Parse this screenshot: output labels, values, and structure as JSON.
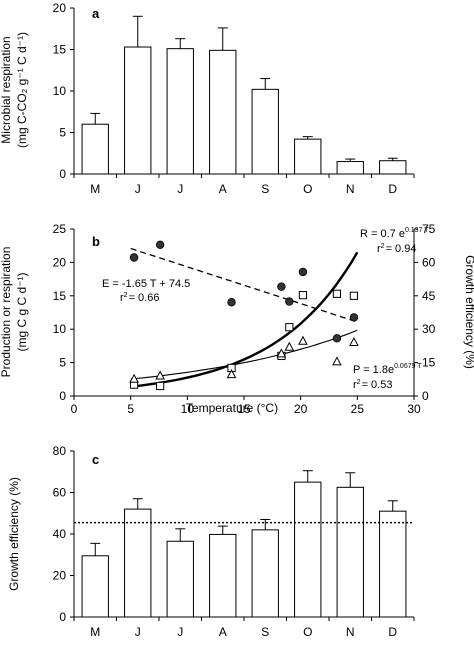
{
  "chart_data": [
    {
      "panel": "a",
      "type": "bar",
      "categories": [
        "M",
        "J",
        "J",
        "A",
        "S",
        "O",
        "N",
        "D"
      ],
      "values": [
        6.0,
        15.3,
        15.1,
        14.9,
        10.2,
        4.2,
        1.5,
        1.6
      ],
      "errors": [
        1.3,
        3.7,
        1.2,
        2.7,
        1.3,
        0.3,
        0.3,
        0.3
      ],
      "ylabel_line1": "Microbial respiration",
      "ylabel_line2": "(mg C-CO₂ g⁻¹ C d⁻¹)",
      "ylim": [
        0,
        20
      ],
      "yticks": [
        "0",
        "5",
        "10",
        "15",
        "20"
      ]
    },
    {
      "panel": "b",
      "type": "scatter",
      "xlabel": "Temperature (°C)",
      "xlim": [
        0,
        30
      ],
      "xticks": [
        "0",
        "5",
        "10",
        "15",
        "20",
        "25",
        "30"
      ],
      "ylabel_left_line1": "Production or respiration",
      "ylabel_left_line2": "(mg C g C d⁻¹)",
      "ylim_left": [
        0,
        25
      ],
      "yticks_left": [
        "0",
        "5",
        "10",
        "15",
        "20",
        "25"
      ],
      "ylabel_right": "Growth efficiency (%)",
      "ylim_right": [
        0,
        75
      ],
      "yticks_right": [
        "0",
        "15",
        "30",
        "45",
        "60",
        "75"
      ],
      "series": [
        {
          "marker": "circle-filled",
          "axis": "right",
          "x": [
            5.3,
            7.6,
            13.9,
            18.3,
            19.0,
            20.2,
            23.2,
            24.7
          ],
          "y": [
            62.2,
            67.9,
            42.1,
            49.1,
            42.4,
            55.7,
            25.9,
            35.3
          ]
        },
        {
          "marker": "square-open",
          "axis": "left",
          "x": [
            5.3,
            7.6,
            13.9,
            18.3,
            19.0,
            20.2,
            23.2,
            24.7
          ],
          "y": [
            1.7,
            1.5,
            4.2,
            6.0,
            10.3,
            15.1,
            15.3,
            15.0
          ]
        },
        {
          "marker": "triangle-open",
          "axis": "left",
          "x": [
            5.3,
            7.6,
            13.9,
            18.3,
            19.0,
            20.2,
            23.2,
            24.7
          ],
          "y": [
            2.5,
            3.0,
            3.2,
            6.3,
            7.3,
            8.2,
            5.1,
            8.0
          ]
        }
      ],
      "fits": [
        {
          "kind": "linear",
          "axis": "right",
          "style": "dashed",
          "slope": -1.65,
          "intercept": 74.5,
          "x_range": [
            5,
            25
          ]
        },
        {
          "kind": "exp",
          "axis": "left",
          "style": "thick",
          "a": 0.7,
          "b": 0.137,
          "x_range": [
            5,
            25
          ]
        },
        {
          "kind": "exp",
          "axis": "left",
          "style": "thin",
          "a": 1.8,
          "b": 0.0679,
          "x_range": [
            5,
            25
          ]
        }
      ],
      "annotations": {
        "E_eq": "E = -1.65 T + 74.5",
        "E_r2_label": "r",
        "E_r2_value": "= 0.66",
        "R_eq_base": "R = 0.7 e",
        "R_eq_exp": "0.137 T",
        "R_r2_label": "r",
        "R_r2_value": "= 0.94",
        "P_eq_base": "P = 1.8e",
        "P_eq_exp": "0.0679 T",
        "P_r2_label": "r",
        "P_r2_value": "= 0.53",
        "sq": "2"
      }
    },
    {
      "panel": "c",
      "type": "bar",
      "categories": [
        "M",
        "J",
        "J",
        "A",
        "S",
        "O",
        "N",
        "D"
      ],
      "values": [
        29.5,
        52.0,
        36.5,
        39.8,
        42.0,
        65.0,
        62.5,
        51.0
      ],
      "errors": [
        6.0,
        5.0,
        6.0,
        4.0,
        5.0,
        5.5,
        7.0,
        5.0
      ],
      "reference_line": 45.5,
      "ylabel": "Growth efficiency (%)",
      "ylim": [
        0,
        80
      ],
      "yticks": [
        "0",
        "20",
        "40",
        "60",
        "80"
      ]
    }
  ]
}
